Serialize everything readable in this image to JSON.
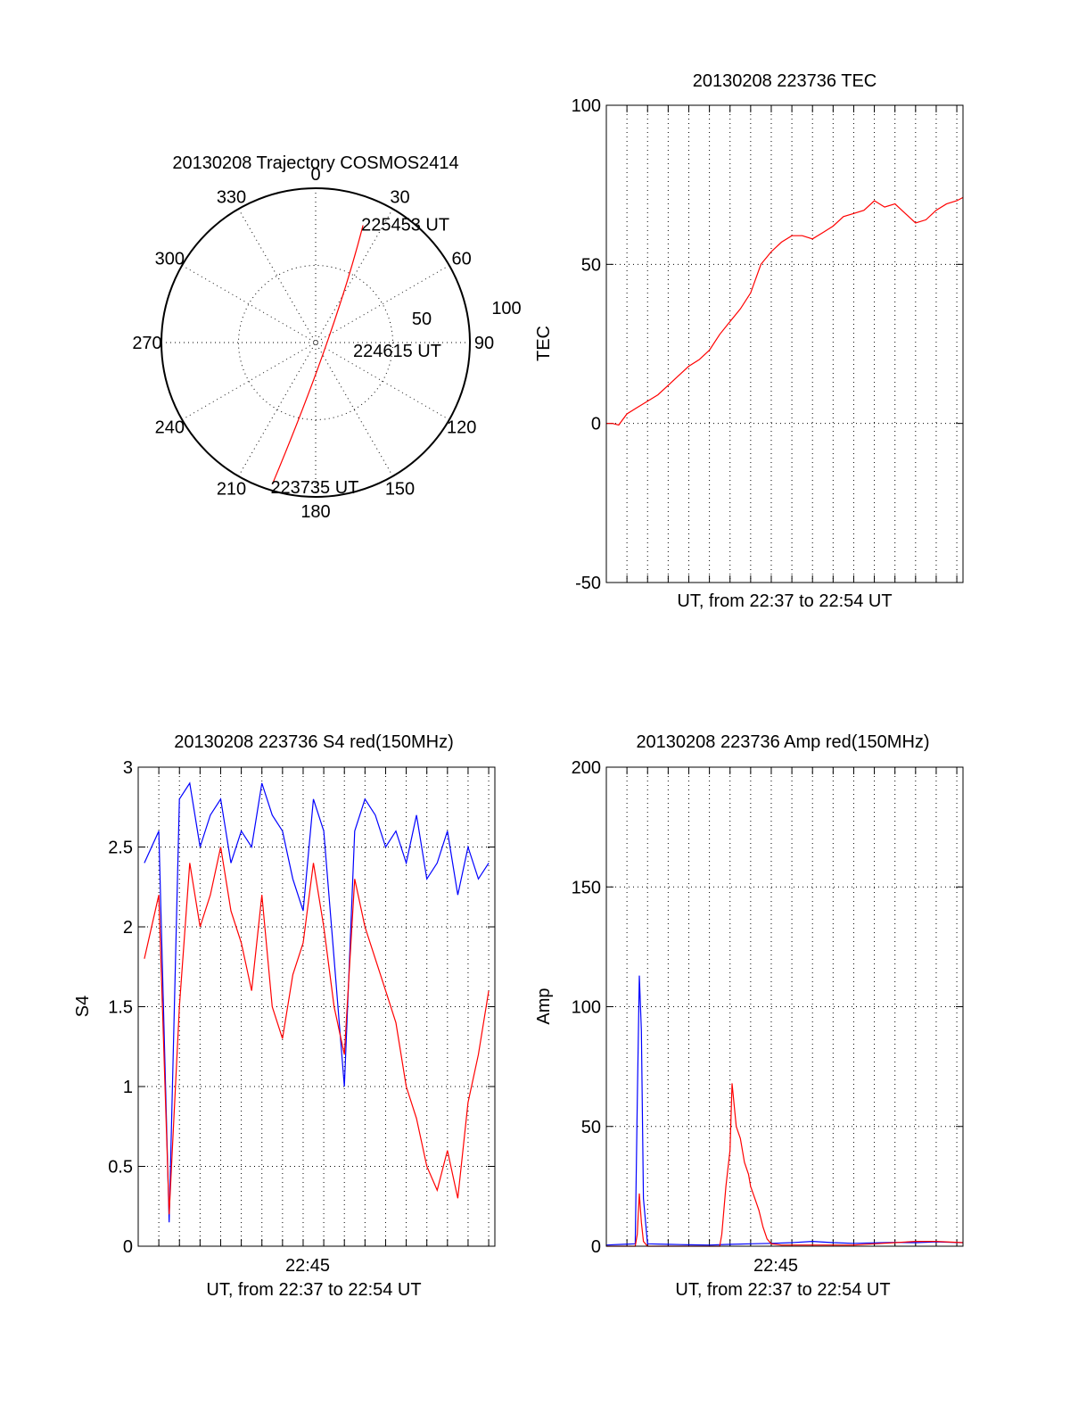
{
  "colors": {
    "red": "#ff0000",
    "blue": "#0000ff",
    "axis": "#000000"
  },
  "chart_data": [
    {
      "type": "polar",
      "title": "20130208 Trajectory COSMOS2414",
      "azimuth_labels": [
        "0",
        "30",
        "60",
        "90",
        "120",
        "150",
        "180",
        "210",
        "240",
        "270",
        "300",
        "330"
      ],
      "elevation_ring_labels": [
        "50",
        "100"
      ],
      "track_color": "red",
      "track": [
        {
          "az": 90,
          "r": 0
        },
        {
          "az": 22,
          "r": 82
        },
        {
          "az": 197,
          "r": 96
        }
      ],
      "annotations": [
        {
          "text": "225453 UT",
          "az": 22,
          "r": 82
        },
        {
          "text": "224615 UT",
          "az": 90,
          "r": 0
        },
        {
          "text": "223735 UT",
          "az": 197,
          "r": 96
        }
      ],
      "grid": true
    },
    {
      "type": "line",
      "title": "20130208 223736 TEC",
      "ylabel": "TEC",
      "xlabel": "UT, from 22:37 to 22:54 UT",
      "ylim": [
        -50,
        100
      ],
      "yticks": [
        "-50",
        "0",
        "50",
        "100"
      ],
      "xlim": [
        0,
        17.3
      ],
      "grid": true,
      "series": [
        {
          "color": "red",
          "x": [
            0.0,
            0.3,
            0.6,
            1.0,
            1.5,
            2.0,
            2.5,
            3.0,
            3.5,
            4.0,
            4.5,
            5.0,
            5.5,
            6.0,
            6.5,
            7.0,
            7.5,
            8.0,
            8.5,
            9.0,
            9.5,
            10.0,
            10.5,
            11.0,
            11.5,
            12.0,
            12.5,
            13.0,
            13.5,
            14.0,
            14.5,
            15.0,
            15.5,
            16.0,
            16.5,
            17.0,
            17.3
          ],
          "values": [
            0,
            0,
            -0.5,
            3,
            5,
            7,
            9,
            12,
            15,
            18,
            20,
            23,
            28,
            32,
            36,
            41,
            50,
            54,
            57,
            59,
            59,
            58,
            60,
            62,
            65,
            66,
            67,
            70,
            68,
            69,
            66,
            63,
            64,
            67,
            69,
            70,
            71
          ]
        }
      ]
    },
    {
      "type": "line",
      "title": "20130208 223736 S4 red(150MHz)",
      "ylabel": "S4",
      "xlabel": "UT, from 22:37 to 22:54 UT",
      "xtick_label": "22:45",
      "ylim": [
        0,
        3
      ],
      "yticks": [
        "0",
        "0.5",
        "1",
        "1.5",
        "2",
        "2.5",
        "3"
      ],
      "xlim": [
        0,
        17.3
      ],
      "grid": true,
      "series": [
        {
          "color": "blue",
          "x": [
            0.3,
            1.0,
            1.5,
            2.0,
            2.5,
            3.0,
            3.5,
            4.0,
            4.5,
            5.0,
            5.5,
            6.0,
            6.5,
            7.0,
            7.5,
            8.0,
            8.5,
            9.0,
            9.5,
            10.0,
            10.5,
            11.0,
            11.5,
            12.0,
            12.5,
            13.0,
            13.5,
            14.0,
            14.5,
            15.0,
            15.5,
            16.0,
            16.5,
            17.0
          ],
          "values": [
            2.4,
            2.6,
            0.15,
            2.8,
            2.9,
            2.5,
            2.7,
            2.8,
            2.4,
            2.6,
            2.5,
            2.9,
            2.7,
            2.6,
            2.3,
            2.1,
            2.8,
            2.6,
            1.8,
            1.0,
            2.6,
            2.8,
            2.7,
            2.5,
            2.6,
            2.4,
            2.7,
            2.3,
            2.4,
            2.6,
            2.2,
            2.5,
            2.3,
            2.4
          ]
        },
        {
          "color": "red",
          "x": [
            0.3,
            1.0,
            1.5,
            2.0,
            2.5,
            3.0,
            3.5,
            4.0,
            4.5,
            5.0,
            5.5,
            6.0,
            6.5,
            7.0,
            7.5,
            8.0,
            8.5,
            9.0,
            9.5,
            10.0,
            10.5,
            11.0,
            11.5,
            12.0,
            12.5,
            13.0,
            13.5,
            14.0,
            14.5,
            15.0,
            15.5,
            16.0,
            16.5,
            17.0
          ],
          "values": [
            1.8,
            2.2,
            0.2,
            1.5,
            2.4,
            2.0,
            2.2,
            2.5,
            2.1,
            1.9,
            1.6,
            2.2,
            1.5,
            1.3,
            1.7,
            1.9,
            2.4,
            2.0,
            1.5,
            1.2,
            2.3,
            2.0,
            1.8,
            1.6,
            1.4,
            1.0,
            0.8,
            0.5,
            0.35,
            0.6,
            0.3,
            0.9,
            1.2,
            1.6
          ]
        }
      ]
    },
    {
      "type": "line",
      "title": "20130208 223736 Amp red(150MHz)",
      "ylabel": "Amp",
      "xlabel": "UT, from 22:37 to 22:54 UT",
      "xtick_label": "22:45",
      "ylim": [
        0,
        200
      ],
      "yticks": [
        "0",
        "50",
        "100",
        "150",
        "200"
      ],
      "xlim": [
        0,
        17.3
      ],
      "grid": true,
      "series": [
        {
          "color": "blue",
          "x": [
            0.0,
            0.8,
            1.4,
            1.5,
            1.6,
            1.7,
            1.8,
            2.0,
            3.0,
            4.0,
            5.0,
            6.0,
            7.0,
            8.0,
            9.0,
            10.0,
            11.0,
            12.0,
            13.0,
            14.0,
            15.0,
            16.0,
            17.3
          ],
          "values": [
            0.5,
            0.8,
            1,
            60,
            113,
            90,
            20,
            1,
            0.8,
            0.6,
            0.5,
            0.8,
            1,
            1.2,
            1.5,
            2,
            1.5,
            1.2,
            1.4,
            1.6,
            1.5,
            1.8,
            1.5
          ]
        },
        {
          "color": "red",
          "x": [
            0.0,
            1.4,
            1.5,
            1.6,
            1.7,
            1.8,
            2.0,
            5.5,
            5.6,
            5.8,
            6.0,
            6.1,
            6.3,
            6.5,
            6.7,
            6.9,
            7.0,
            7.2,
            7.4,
            7.6,
            7.8,
            8.0,
            8.5,
            10.0,
            12.0,
            13.0,
            14.0,
            15.0,
            16.0,
            17.3
          ],
          "values": [
            0,
            0,
            5,
            22,
            10,
            2,
            0,
            0,
            5,
            25,
            40,
            68,
            50,
            45,
            35,
            30,
            25,
            20,
            15,
            8,
            3,
            1,
            0.5,
            0.5,
            0.5,
            1,
            1.5,
            2,
            2,
            1.5
          ]
        }
      ]
    }
  ]
}
